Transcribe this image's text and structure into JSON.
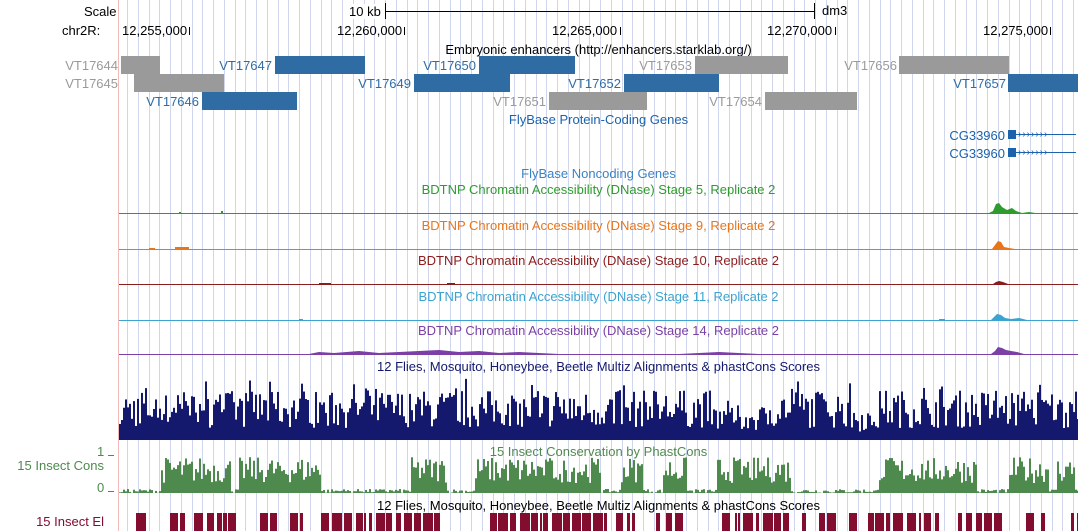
{
  "scale": {
    "label": "Scale",
    "bar_text": "10 kb",
    "assembly": "dm3"
  },
  "position": {
    "chrom_label": "chr2R:",
    "ticks": [
      "12,255,000",
      "12,260,000",
      "12,265,000",
      "12,270,000",
      "12,275,000"
    ]
  },
  "colors": {
    "enhancer_blue": "#2f6ca4",
    "enhancer_gray": "#9a9a9a",
    "gene": "#1b63ad",
    "stage5": "#2e9b2e",
    "stage9": "#e8751a",
    "stage10": "#8b1c1c",
    "stage11": "#3ba3d0",
    "stage14": "#7b3fa6",
    "multiz": "#14196e",
    "cons": "#4e8a4e",
    "elements": "#820d2f"
  },
  "tracks": {
    "enhancers": {
      "title": "Embryonic enhancers (http://enhancers.starklab.org/)",
      "items": [
        {
          "name": "VT17644",
          "shade": "gray"
        },
        {
          "name": "VT17645",
          "shade": "gray"
        },
        {
          "name": "VT17646",
          "shade": "blue"
        },
        {
          "name": "VT17647",
          "shade": "blue"
        },
        {
          "name": "VT17649",
          "shade": "blue"
        },
        {
          "name": "VT17650",
          "shade": "blue"
        },
        {
          "name": "VT17651",
          "shade": "gray"
        },
        {
          "name": "VT17652",
          "shade": "blue"
        },
        {
          "name": "VT17653",
          "shade": "gray"
        },
        {
          "name": "VT17654",
          "shade": "gray"
        },
        {
          "name": "VT17656",
          "shade": "gray"
        },
        {
          "name": "VT17657",
          "shade": "blue"
        }
      ]
    },
    "protein_genes": {
      "title": "FlyBase Protein-Coding Genes",
      "genes": [
        "CG33960",
        "CG33960"
      ]
    },
    "noncoding": {
      "title": "FlyBase Noncoding Genes"
    },
    "dnase": [
      {
        "title": "BDTNP Chromatin Accessibility (DNase) Stage 5, Replicate 2",
        "color_key": "stage5"
      },
      {
        "title": "BDTNP Chromatin Accessibility (DNase) Stage 9, Replicate 2",
        "color_key": "stage9"
      },
      {
        "title": "BDTNP Chromatin Accessibility (DNase) Stage 10, Replicate 2",
        "color_key": "stage10"
      },
      {
        "title": "BDTNP Chromatin Accessibility (DNase) Stage 11, Replicate 2",
        "color_key": "stage11"
      },
      {
        "title": "BDTNP Chromatin Accessibility (DNase) Stage 14, Replicate 2",
        "color_key": "stage14"
      }
    ],
    "multiz": {
      "title": "12 Flies, Mosquito, Honeybee, Beetle Multiz Alignments & phastCons Scores"
    },
    "cons": {
      "title": "15 Insect Conservation by PhastCons",
      "side_label": "15 Insect Cons",
      "axis_max": "1",
      "axis_min": "0"
    },
    "elements": {
      "title": "12 Flies, Mosquito, Honeybee, Beetle Multiz Alignments & phastCons Scores",
      "side_label": "15 Insect El"
    }
  }
}
